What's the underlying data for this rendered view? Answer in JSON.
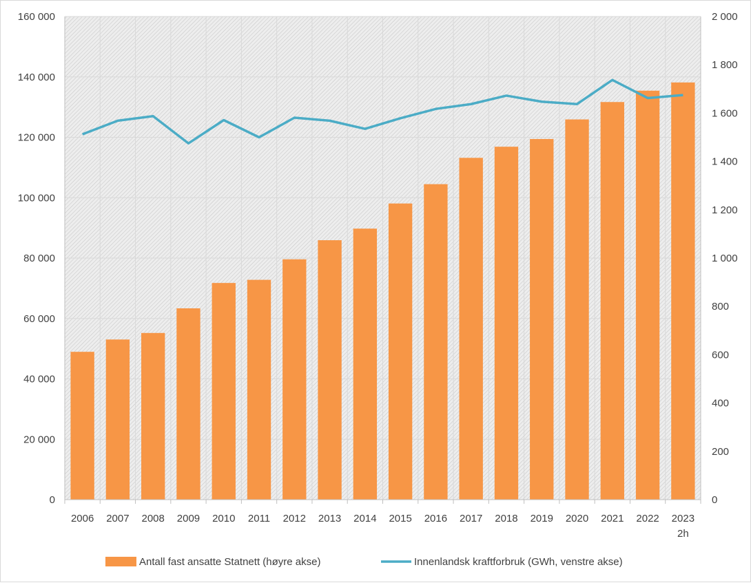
{
  "chart_data": {
    "type": "bar",
    "categories": [
      "2006",
      "2007",
      "2008",
      "2009",
      "2010",
      "2011",
      "2012",
      "2013",
      "2014",
      "2015",
      "2016",
      "2017",
      "2018",
      "2019",
      "2020",
      "2021",
      "2022",
      "2023"
    ],
    "category_sublabels": {
      "2023": "2h"
    },
    "left_axis": {
      "ylim": [
        0,
        160000
      ],
      "ticks": [
        "0",
        "20 000",
        "40 000",
        "60 000",
        "80 000",
        "100 000",
        "120 000",
        "140 000",
        "160 000"
      ],
      "tick_values": [
        0,
        20000,
        40000,
        60000,
        80000,
        100000,
        120000,
        140000,
        160000
      ]
    },
    "right_axis": {
      "ylim": [
        0,
        2000
      ],
      "ticks": [
        "0",
        "200",
        "400",
        "600",
        "800",
        "1 000",
        "1 200",
        "1 400",
        "1 600",
        "1 800",
        "2 000"
      ],
      "tick_values": [
        0,
        200,
        400,
        600,
        800,
        1000,
        1200,
        1400,
        1600,
        1800,
        2000
      ]
    },
    "series": [
      {
        "name": "Antall fast ansatte Statnett (høyre akse)",
        "type": "bar",
        "axis": "right",
        "color": "#f79646",
        "values": [
          612,
          663,
          690,
          792,
          897,
          910,
          995,
          1074,
          1122,
          1226,
          1306,
          1415,
          1461,
          1493,
          1574,
          1646,
          1693,
          1727
        ]
      },
      {
        "name": "Innenlandsk kraftforbruk (GWh, venstre akse)",
        "type": "line",
        "axis": "left",
        "color": "#4bacc6",
        "values": [
          121000,
          125500,
          127000,
          118000,
          125700,
          120000,
          126500,
          125500,
          122800,
          126300,
          129400,
          131000,
          133800,
          131800,
          131000,
          139000,
          133000,
          134000
        ]
      }
    ],
    "grid": true,
    "legend_position": "bottom"
  }
}
